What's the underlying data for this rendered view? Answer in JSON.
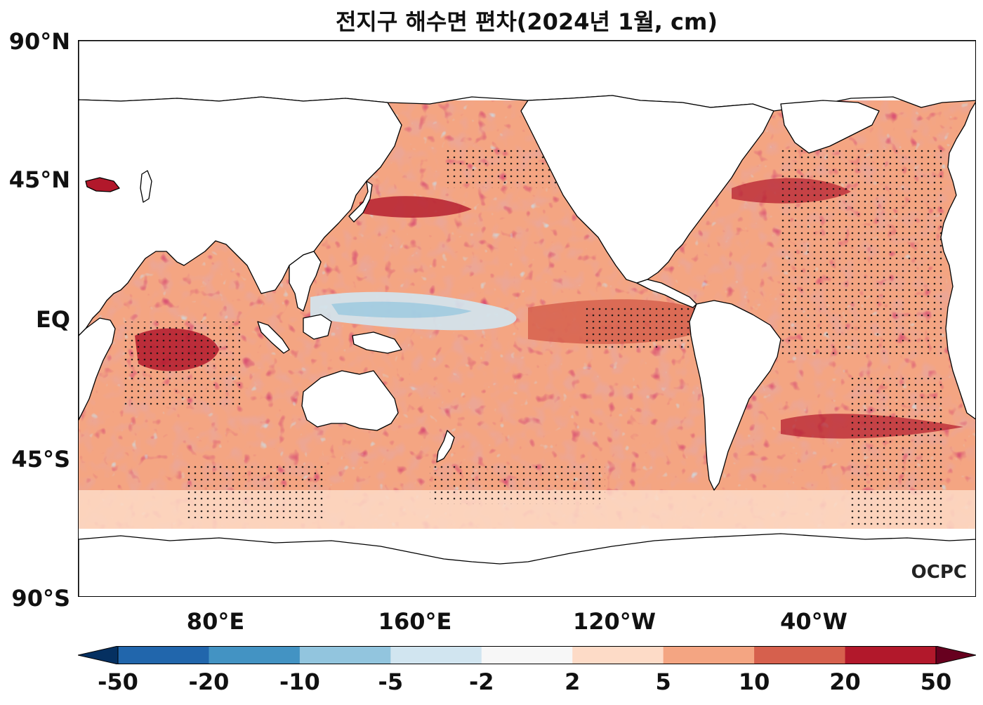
{
  "title": "전지구 해수면 편차(2024년 1월, cm)",
  "lat_labels": [
    "90°N",
    "45°N",
    "EQ",
    "45°S",
    "90°S"
  ],
  "lon_labels": [
    "80°E",
    "160°E",
    "120°W",
    "40°W"
  ],
  "colorbar": {
    "ticks": [
      "-50",
      "-20",
      "-10",
      "-5",
      "-2",
      "2",
      "5",
      "10",
      "20",
      "50"
    ],
    "colors": [
      "#053061",
      "#2166ac",
      "#4393c3",
      "#92c5de",
      "#d1e5f0",
      "#f7f7f7",
      "#fddbc7",
      "#f4a582",
      "#d6604d",
      "#b2182b",
      "#67001f"
    ]
  },
  "logo": "OCPC"
}
